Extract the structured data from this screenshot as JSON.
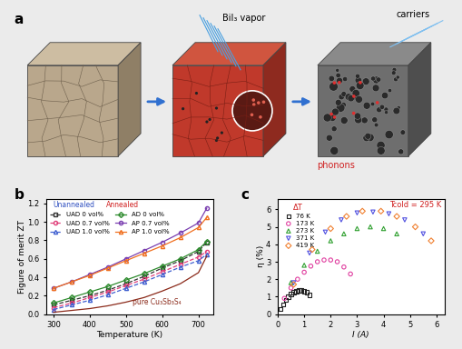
{
  "diagram": {
    "panel": "a",
    "vapor": "BiI₃ vapor",
    "carriers": "carriers",
    "phonons": "phonons"
  },
  "chart_data": [
    {
      "type": "line",
      "panel": "b",
      "x_label": "Temperature (K)",
      "y_label": "Figure of merit ZT",
      "x": [
        300,
        350,
        400,
        450,
        500,
        550,
        600,
        650,
        700,
        723
      ],
      "xlim": [
        280,
        740
      ],
      "xticks": [
        300,
        400,
        500,
        600,
        700
      ],
      "ylim": [
        0,
        1.25
      ],
      "yticks": [
        {
          "value": 0,
          "label": "0.0"
        },
        0.2,
        0.4,
        0.6,
        0.8,
        {
          "value": 1,
          "label": "1.0"
        },
        1.2
      ],
      "legend": "upper left",
      "annotations": [
        {
          "text": "Unannealed",
          "color": "#3050c0"
        },
        {
          "text": "Annealed",
          "color": "#d02020"
        },
        {
          "text": "pure Cu₃Sb₃S₄",
          "color": "#8b2a1a"
        }
      ],
      "series": [
        {
          "name": "UAD 0 vol%",
          "color": "#333333",
          "marker": "square",
          "line_style": "dashed",
          "values": [
            0.1,
            0.15,
            0.2,
            0.26,
            0.33,
            0.41,
            0.5,
            0.58,
            0.68,
            0.78
          ]
        },
        {
          "name": "UAD 0.7 vol%",
          "color": "#e0407a",
          "marker": "circle",
          "line_style": "dashed",
          "values": [
            0.07,
            0.12,
            0.18,
            0.24,
            0.31,
            0.38,
            0.46,
            0.54,
            0.62,
            0.68
          ]
        },
        {
          "name": "UAD 1.0 vol%",
          "color": "#4060d0",
          "marker": "triangle",
          "line_style": "dashed",
          "values": [
            0.05,
            0.1,
            0.15,
            0.21,
            0.28,
            0.35,
            0.43,
            0.51,
            0.58,
            0.65
          ]
        },
        {
          "name": "AD 0 vol%",
          "color": "#2e8b2e",
          "marker": "diamond",
          "line_style": "solid",
          "values": [
            0.12,
            0.18,
            0.24,
            0.3,
            0.37,
            0.44,
            0.52,
            0.6,
            0.7,
            0.79
          ]
        },
        {
          "name": "AP 0.7 vol%",
          "color": "#7a3fb0",
          "marker": "circle",
          "line_style": "solid",
          "values": [
            0.28,
            0.35,
            0.43,
            0.51,
            0.6,
            0.69,
            0.78,
            0.88,
            0.99,
            1.15
          ]
        },
        {
          "name": "AP 1.0 vol%",
          "color": "#f07020",
          "marker": "triangle",
          "line_style": "solid",
          "values": [
            0.28,
            0.35,
            0.42,
            0.5,
            0.58,
            0.66,
            0.74,
            0.83,
            0.94,
            1.05
          ]
        },
        {
          "color": "#8b2a1a",
          "line_style": "solid",
          "values": [
            0.02,
            0.04,
            0.06,
            0.09,
            0.13,
            0.18,
            0.25,
            0.33,
            0.45,
            0.63
          ]
        }
      ]
    },
    {
      "type": "scatter",
      "panel": "c",
      "x_label": "I (A)",
      "y_label": "η (%)",
      "xlim": [
        0,
        6.3
      ],
      "xticks": [
        0,
        1,
        2,
        3,
        4,
        5,
        6
      ],
      "ylim": [
        0,
        6.6
      ],
      "yticks": [
        0,
        1,
        2,
        3,
        4,
        5,
        6
      ],
      "legend": "upper left",
      "legend_title": "ΔT",
      "annotations": [
        {
          "text": "Tcold = 295 K",
          "color": "#d02020"
        }
      ],
      "series": [
        {
          "name": "76 K",
          "color": "#222222",
          "marker": "square",
          "x": [
            0.1,
            0.2,
            0.3,
            0.4,
            0.5,
            0.6,
            0.7,
            0.8,
            0.9,
            1.0,
            1.1,
            1.2
          ],
          "values": [
            0.3,
            0.55,
            0.8,
            1.0,
            1.15,
            1.25,
            1.3,
            1.35,
            1.35,
            1.3,
            1.25,
            1.1
          ]
        },
        {
          "name": "173 K",
          "color": "#e040a0",
          "marker": "circle",
          "x": [
            0.25,
            0.5,
            0.75,
            1.0,
            1.25,
            1.5,
            1.75,
            2.0,
            2.25,
            2.5,
            2.75
          ],
          "values": [
            0.9,
            1.5,
            2.0,
            2.4,
            2.75,
            3.0,
            3.1,
            3.1,
            3.0,
            2.7,
            2.3
          ]
        },
        {
          "name": "273 K",
          "color": "#30a030",
          "marker": "triangle",
          "x": [
            0.5,
            1.0,
            1.5,
            2.0,
            2.5,
            3.0,
            3.5,
            4.0,
            4.5
          ],
          "values": [
            1.8,
            2.8,
            3.6,
            4.2,
            4.6,
            4.9,
            5.0,
            4.9,
            4.6
          ]
        },
        {
          "name": "371 K",
          "color": "#5050e0",
          "marker": "triangle_down",
          "x": [
            0.6,
            1.2,
            1.8,
            2.4,
            3.0,
            3.6,
            4.2,
            4.8,
            5.5
          ],
          "values": [
            1.8,
            3.5,
            4.7,
            5.4,
            5.8,
            5.85,
            5.75,
            5.4,
            4.6
          ]
        },
        {
          "name": "419 K",
          "color": "#f08030",
          "marker": "diamond",
          "x": [
            0.6,
            1.3,
            2.0,
            2.6,
            3.2,
            3.9,
            4.5,
            5.2,
            5.8
          ],
          "values": [
            1.7,
            3.7,
            4.9,
            5.6,
            5.9,
            5.9,
            5.6,
            5.0,
            4.2
          ]
        }
      ]
    }
  ]
}
